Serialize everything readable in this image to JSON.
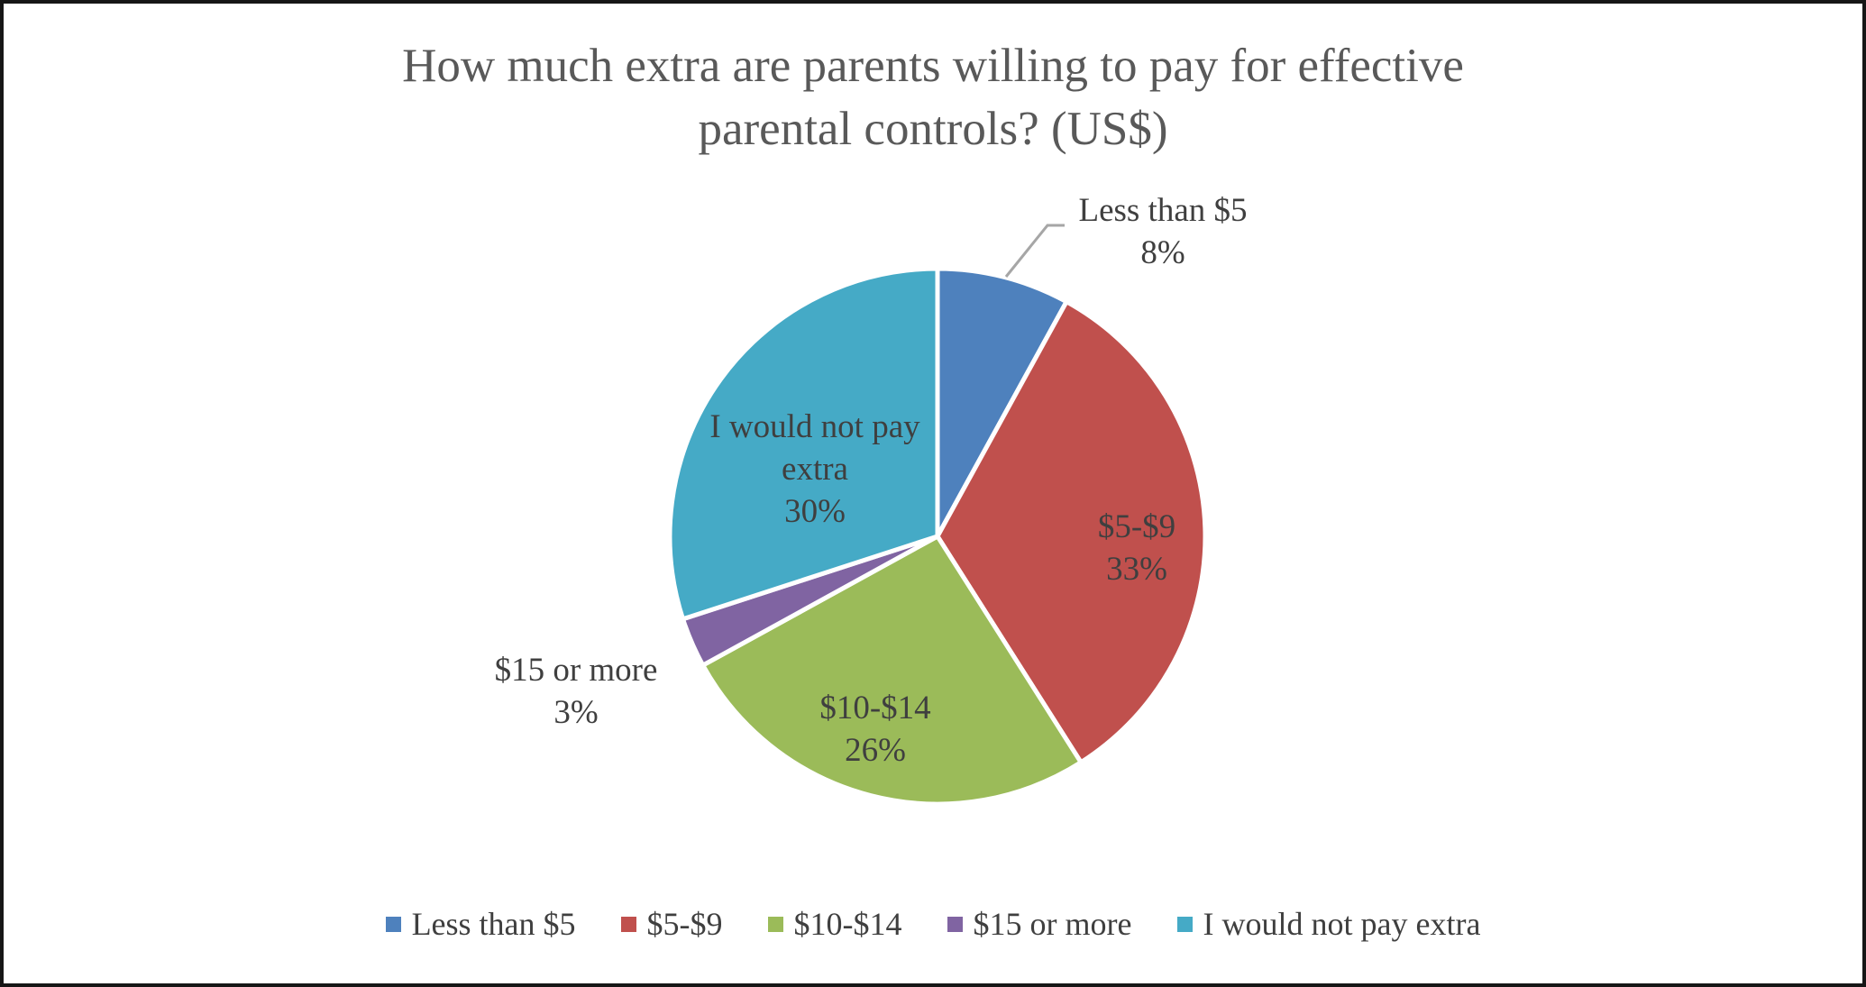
{
  "title": {
    "line1": "How much extra are parents willing to pay for effective",
    "line2": "parental controls? (US$)"
  },
  "chart_data": {
    "type": "pie",
    "title": "How much extra are parents willing to pay for effective parental controls? (US$)",
    "categories": [
      "Less than $5",
      "$5-$9",
      "$10-$14",
      "$15 or more",
      "I would not pay extra"
    ],
    "values": [
      8,
      33,
      26,
      3,
      30
    ],
    "unit": "percent",
    "colors": [
      "#4E81BD",
      "#C0504D",
      "#9BBB59",
      "#8064A2",
      "#45AAC6"
    ],
    "start_angle_deg_clockwise_from_top": 0,
    "direction": "clockwise",
    "slice_border_color": "#FFFFFF",
    "legend_position": "bottom",
    "labels": [
      {
        "text": "Less than $5",
        "pct": "8%",
        "placement": "outside-callout"
      },
      {
        "text": "$5-$9",
        "pct": "33%",
        "placement": "inside"
      },
      {
        "text": "$10-$14",
        "pct": "26%",
        "placement": "inside"
      },
      {
        "text": "$15 or more",
        "pct": "3%",
        "placement": "outside"
      },
      {
        "text": "I would not pay extra",
        "pct": "30%",
        "placement": "inside"
      }
    ]
  },
  "colors": {
    "title_text": "#595959",
    "label_text": "#3F3F3F",
    "leader_line": "#A6A6A6",
    "frame_border": "#161616",
    "background": "#FFFFFF"
  }
}
